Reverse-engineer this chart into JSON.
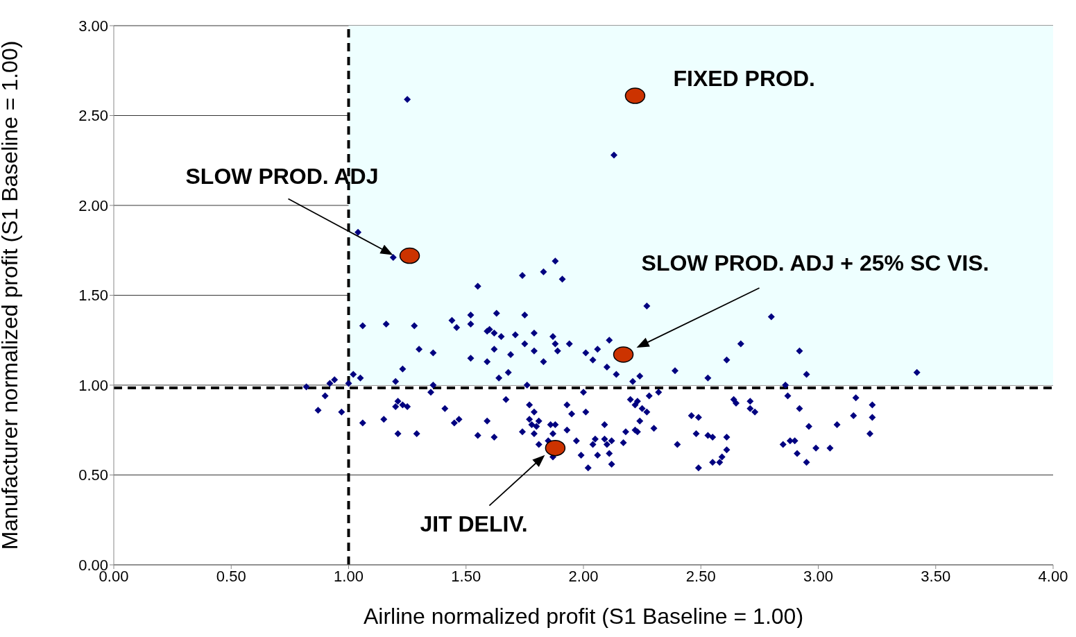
{
  "chart_data": {
    "type": "scatter",
    "xlabel": "Airline normalized profit (S1 Baseline = 1.00)",
    "ylabel": "Manufacturer normalized profit (S1 Baseline = 1.00)",
    "xlim": [
      0,
      4
    ],
    "ylim": [
      0,
      3
    ],
    "xticks": [
      {
        "value": 0,
        "label": "0.00"
      },
      {
        "value": 0.5,
        "label": "0.50"
      },
      {
        "value": 1,
        "label": "1.00"
      },
      {
        "value": 1.5,
        "label": "1.50"
      },
      {
        "value": 2,
        "label": "2.00"
      },
      {
        "value": 2.5,
        "label": "2.50"
      },
      {
        "value": 3,
        "label": "3.00"
      },
      {
        "value": 3.5,
        "label": "3.50"
      },
      {
        "value": 4,
        "label": "4.00"
      }
    ],
    "yticks": [
      {
        "value": 0,
        "label": "0.00"
      },
      {
        "value": 0.5,
        "label": "0.50"
      },
      {
        "value": 1,
        "label": "1.00"
      },
      {
        "value": 1.5,
        "label": "1.50"
      },
      {
        "value": 2,
        "label": "2.00"
      },
      {
        "value": 2.5,
        "label": "2.50"
      },
      {
        "value": 3,
        "label": "3.00"
      }
    ],
    "grid": "y",
    "legend": false,
    "series": [
      {
        "color": "#000080",
        "marker": "diamond",
        "x": [
          1.25,
          2.13,
          1.04,
          1.19,
          1.88,
          1.74,
          1.83,
          1.91,
          1.55,
          2.27,
          2.8,
          1.06,
          1.16,
          1.28,
          1.44,
          1.46,
          1.52,
          1.52,
          1.63,
          1.75,
          1.59,
          1.6,
          1.62,
          1.65,
          1.71,
          1.79,
          1.75,
          1.87,
          1.88,
          1.89,
          1.94,
          1.3,
          1.36,
          1.52,
          1.59,
          1.62,
          1.69,
          1.79,
          1.83,
          1.23,
          1.64,
          1.68,
          1.02,
          1.05,
          1.2,
          1.76,
          1.36,
          0.94,
          0.92,
          1.0,
          2.01,
          2.06,
          2.11,
          2.04,
          2.1,
          2.14,
          2.21,
          2.24,
          2.39,
          2.53,
          2.61,
          2.67,
          2.92,
          2.95,
          3.42,
          2.86,
          0.82,
          0.9,
          0.87,
          0.97,
          1.06,
          1.15,
          1.21,
          1.29,
          1.2,
          1.21,
          1.23,
          1.25,
          1.35,
          1.41,
          1.45,
          1.47,
          1.59,
          1.55,
          1.62,
          1.67,
          1.77,
          1.79,
          1.77,
          1.81,
          1.78,
          1.8,
          1.74,
          1.79,
          1.87,
          1.86,
          1.88,
          1.93,
          1.93,
          1.95,
          1.81,
          1.85,
          1.87,
          1.97,
          1.99,
          2.0,
          2.01,
          2.09,
          2.2,
          2.23,
          2.22,
          2.28,
          2.32,
          2.25,
          2.27,
          2.24,
          2.22,
          2.23,
          2.3,
          2.18,
          2.05,
          2.04,
          2.09,
          2.12,
          2.1,
          2.17,
          2.06,
          2.11,
          2.02,
          2.12,
          2.4,
          2.46,
          2.49,
          2.48,
          2.53,
          2.55,
          2.61,
          2.61,
          2.59,
          2.58,
          2.55,
          2.49,
          2.64,
          2.65,
          2.71,
          2.71,
          2.73,
          2.87,
          2.92,
          2.96,
          2.85,
          2.88,
          2.9,
          2.91,
          2.99,
          3.05,
          2.95,
          3.08,
          3.16,
          3.15,
          3.23,
          3.23,
          3.22
        ],
        "values": [
          2.59,
          2.28,
          1.85,
          1.71,
          1.69,
          1.61,
          1.63,
          1.59,
          1.55,
          1.44,
          1.38,
          1.33,
          1.34,
          1.33,
          1.36,
          1.32,
          1.39,
          1.34,
          1.4,
          1.39,
          1.3,
          1.31,
          1.29,
          1.27,
          1.28,
          1.29,
          1.23,
          1.27,
          1.23,
          1.19,
          1.23,
          1.2,
          1.18,
          1.15,
          1.13,
          1.2,
          1.17,
          1.19,
          1.13,
          1.09,
          1.04,
          1.07,
          1.06,
          1.04,
          1.02,
          1.0,
          1.0,
          1.03,
          1.01,
          1.01,
          1.18,
          1.2,
          1.25,
          1.14,
          1.1,
          1.06,
          1.02,
          1.05,
          1.08,
          1.04,
          1.14,
          1.23,
          1.19,
          1.06,
          1.07,
          1.0,
          0.99,
          0.94,
          0.86,
          0.85,
          0.79,
          0.81,
          0.73,
          0.73,
          0.88,
          0.91,
          0.89,
          0.88,
          0.96,
          0.87,
          0.79,
          0.81,
          0.8,
          0.72,
          0.71,
          0.92,
          0.89,
          0.85,
          0.81,
          0.8,
          0.78,
          0.77,
          0.74,
          0.73,
          0.73,
          0.78,
          0.78,
          0.75,
          0.89,
          0.84,
          0.67,
          0.69,
          0.6,
          0.69,
          0.61,
          0.96,
          0.85,
          0.78,
          0.92,
          0.91,
          0.89,
          0.94,
          0.96,
          0.87,
          0.85,
          0.8,
          0.75,
          0.74,
          0.76,
          0.74,
          0.7,
          0.67,
          0.7,
          0.69,
          0.67,
          0.68,
          0.61,
          0.62,
          0.54,
          0.56,
          0.67,
          0.83,
          0.82,
          0.73,
          0.72,
          0.71,
          0.71,
          0.64,
          0.6,
          0.57,
          0.57,
          0.54,
          0.92,
          0.9,
          0.91,
          0.87,
          0.85,
          0.94,
          0.87,
          0.77,
          0.67,
          0.69,
          0.69,
          0.62,
          0.65,
          0.65,
          0.57,
          0.78,
          0.93,
          0.83,
          0.89,
          0.82,
          0.73
        ]
      },
      {
        "color": "#cc3300",
        "marker": "circle",
        "x": [
          2.22,
          1.26,
          2.17,
          1.88
        ],
        "values": [
          2.61,
          1.72,
          1.17,
          0.65
        ]
      }
    ],
    "ref_lines": [
      {
        "axis": "x",
        "value": 1.0,
        "color": "#000000",
        "line_style": "dashed"
      },
      {
        "axis": "y",
        "value": 0.985,
        "color": "#000000",
        "line_style": "dashed"
      }
    ],
    "bands": [
      {
        "axis": "y",
        "from": 1,
        "to": 3,
        "color": "#eeffff"
      }
    ],
    "annotations": [
      "FIXED PROD.",
      "SLOW PROD. ADJ",
      "SLOW PROD. ADJ + 25% SC VIS.",
      "JIT DELIV."
    ]
  }
}
